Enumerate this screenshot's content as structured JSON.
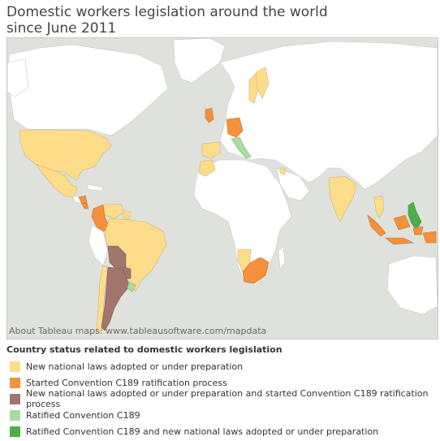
{
  "title": {
    "line1": "Domestic workers legislation around the world",
    "line2": "since June 2011"
  },
  "map": {
    "credit": "About Tableau maps: www.tableausoftware.com/mapdata",
    "background_color": "#dfe2dc",
    "land_color": "#ffffff",
    "highlighted_countries": [
      {
        "name": "United States",
        "status": 0
      },
      {
        "name": "Mexico",
        "status": 0
      },
      {
        "name": "Nicaragua",
        "status": 1
      },
      {
        "name": "Costa Rica",
        "status": 1
      },
      {
        "name": "Venezuela",
        "status": 0
      },
      {
        "name": "Colombia",
        "status": 1
      },
      {
        "name": "Guyana",
        "status": 0
      },
      {
        "name": "Brazil",
        "status": 0
      },
      {
        "name": "Bolivia",
        "status": 2
      },
      {
        "name": "Paraguay",
        "status": 2
      },
      {
        "name": "Argentina",
        "status": 2
      },
      {
        "name": "Chile",
        "status": 0
      },
      {
        "name": "Uruguay",
        "status": 3
      },
      {
        "name": "Finland",
        "status": 0
      },
      {
        "name": "Sweden",
        "status": 0
      },
      {
        "name": "United Kingdom",
        "status": 1
      },
      {
        "name": "Germany",
        "status": 1
      },
      {
        "name": "Italy",
        "status": 3
      },
      {
        "name": "Spain",
        "status": 0
      },
      {
        "name": "Morocco",
        "status": 0
      },
      {
        "name": "Jordan",
        "status": 0
      },
      {
        "name": "India",
        "status": 0
      },
      {
        "name": "Thailand",
        "status": 0
      },
      {
        "name": "Philippines",
        "status": 4
      },
      {
        "name": "Indonesia",
        "status": 1
      },
      {
        "name": "Namibia",
        "status": 0
      },
      {
        "name": "South Africa",
        "status": 1
      }
    ]
  },
  "legend": {
    "title": "Country status related to domestic workers legislation",
    "items": [
      {
        "label": "New national laws adopted or under preparation",
        "color": "#fedd8a"
      },
      {
        "label": "Started Convention C189 ratification process",
        "color": "#f5913c"
      },
      {
        "label": "New national laws adopted or under preparation and started Convention C189 ratification process",
        "color": "#a2756c"
      },
      {
        "label": "Ratified Convention C189",
        "color": "#a8dca2"
      },
      {
        "label": "Ratified Convention C189 and new national laws adopted or under preparation",
        "color": "#4eae4a"
      }
    ]
  }
}
